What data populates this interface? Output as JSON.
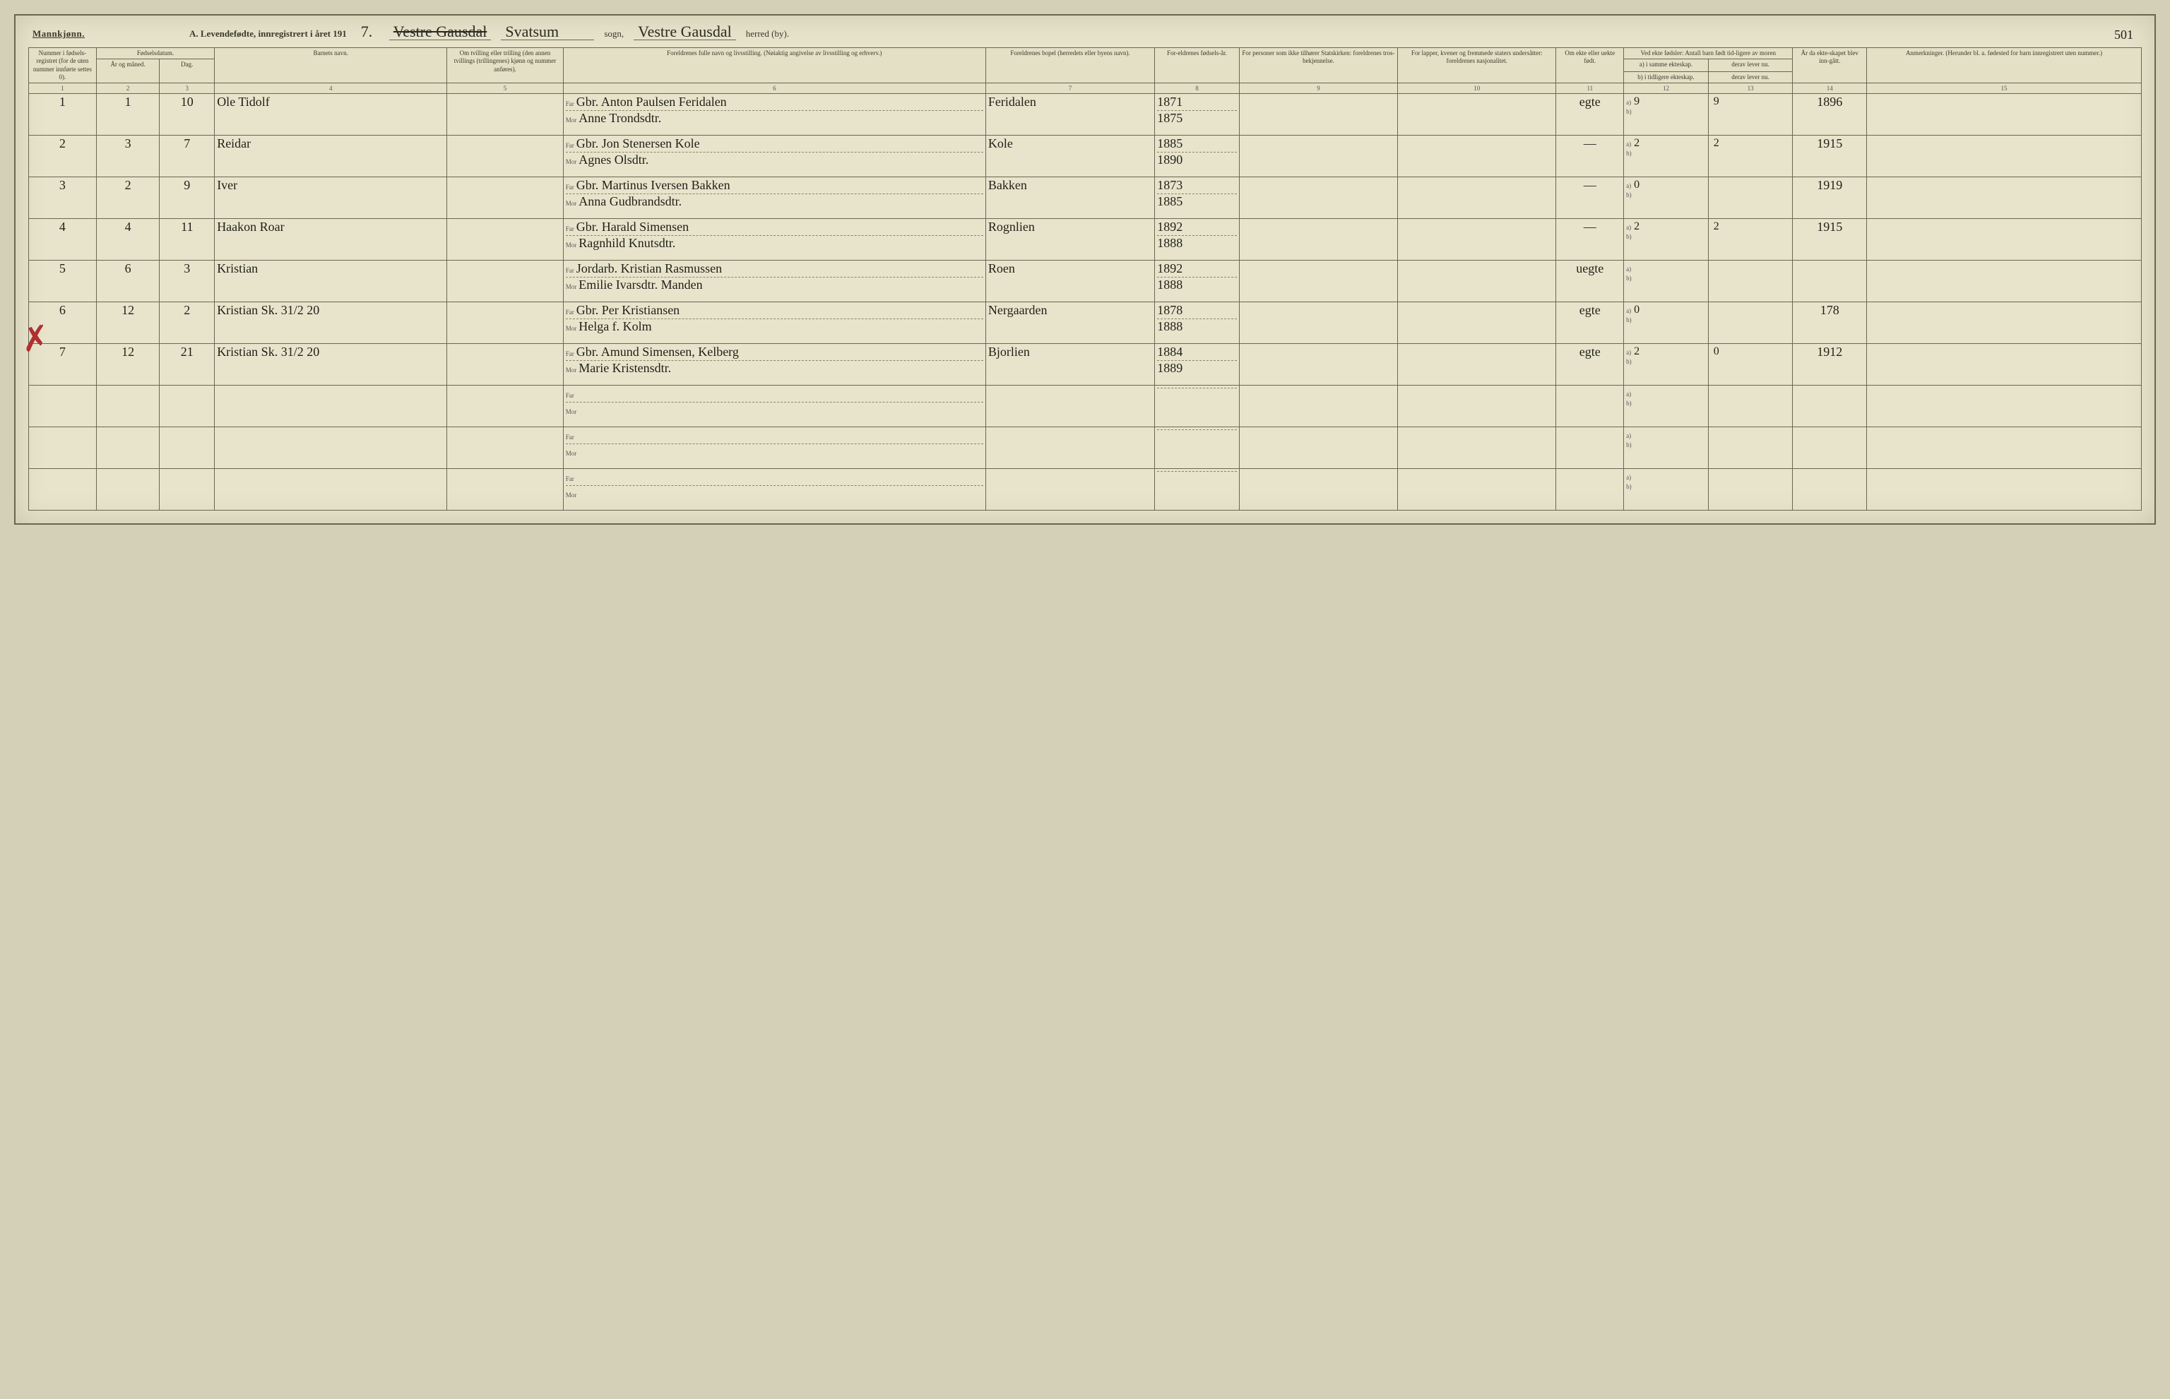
{
  "header": {
    "gender": "Mannkjønn.",
    "title_prefix": "A.  Levendefødte, innregistrert i året 191",
    "year_suffix": "7.",
    "sogn_struck": "Vestre Gausdal",
    "sogn_hand": "Svatsum",
    "sogn_label": "sogn,",
    "herred_hand": "Vestre Gausdal",
    "herred_label": "herred (by).",
    "page_number": "501"
  },
  "columns": {
    "c1": "Nummer i fødsels-registret (for de uten nummer innførte settes 0).",
    "c2a": "Fødselsdatum.",
    "c2": "År og måned.",
    "c3": "Dag.",
    "c4": "Barnets navn.",
    "c5": "Om tvilling eller trilling (den annen tvillings (trillingenes) kjønn og nummer anføres).",
    "c6": "Foreldrenes fulle navn og livsstilling. (Nøiaktig angivelse av livsstilling og erhverv.)",
    "c7": "Foreldrenes bopel (herredets eller byens navn).",
    "c8": "For-eldrenes fødsels-år.",
    "c9": "For personer som ikke tilhører Statskirken: foreldrenes tros-bekjennelse.",
    "c10": "For lapper, kvener og fremmede staters undersåtter: foreldrenes nasjonalitet.",
    "c11": "Om ekte eller uekte født.",
    "c12_top": "Ved ekte fødsler: Antall barn født tid-ligere av moren",
    "c12": "a) i samme ekteskap.",
    "c12b": "b) i tidligere ekteskap.",
    "c13": "derav lever nu.",
    "c13b": "derav lever nu.",
    "c14": "År da ekte-skapet blev inn-gått.",
    "c15": "Anmerkninger. (Herunder bl. a. fødested for barn innregistrert uten nummer.)"
  },
  "rows": [
    {
      "num": "1",
      "month": "1",
      "day": "10",
      "name": "Ole Tidolf",
      "far": "Gbr. Anton Paulsen Feridalen",
      "mor": "Anne Trondsdtr.",
      "bopel": "Feridalen",
      "far_year": "1871",
      "mor_year": "1875",
      "ekte": "egte",
      "a": "9",
      "a_lever": "9",
      "year_m": "1896"
    },
    {
      "num": "2",
      "month": "3",
      "day": "7",
      "name": "Reidar",
      "far": "Gbr. Jon Stenersen Kole",
      "mor": "Agnes Olsdtr.",
      "bopel": "Kole",
      "far_year": "1885",
      "mor_year": "1890",
      "ekte": "—",
      "a": "2",
      "a_lever": "2",
      "year_m": "1915"
    },
    {
      "num": "3",
      "month": "2",
      "day": "9",
      "name": "Iver",
      "far": "Gbr. Martinus Iversen Bakken",
      "mor": "Anna Gudbrandsdtr.",
      "bopel": "Bakken",
      "far_year": "1873",
      "mor_year": "1885",
      "ekte": "—",
      "a": "0",
      "a_lever": "",
      "year_m": "1919"
    },
    {
      "num": "4",
      "month": "4",
      "day": "11",
      "name": "Haakon Roar",
      "far": "Gbr. Harald Simensen",
      "mor": "Ragnhild Knutsdtr.",
      "bopel": "Rognlien",
      "far_year": "1892",
      "mor_year": "1888",
      "ekte": "—",
      "a": "2",
      "a_lever": "2",
      "year_m": "1915"
    },
    {
      "num": "5",
      "month": "6",
      "day": "3",
      "name": "Kristian",
      "far": "Jordarb. Kristian Rasmussen",
      "mor": "Emilie Ivarsdtr. Manden",
      "bopel": "Roen",
      "far_year": "1892",
      "mor_year": "1888",
      "ekte": "uegte",
      "a": "",
      "a_lever": "",
      "year_m": ""
    },
    {
      "num": "6",
      "month": "12",
      "day": "2",
      "name": "Kristian   Sk. 31/2 20",
      "far": "Gbr. Per Kristiansen",
      "mor": "Helga f. Kolm",
      "bopel": "Nergaarden",
      "far_year": "1878",
      "mor_year": "1888",
      "ekte": "egte",
      "a": "0",
      "a_lever": "",
      "year_m": "178"
    },
    {
      "num": "7",
      "month": "12",
      "day": "21",
      "name": "Kristian   Sk. 31/2 20",
      "far": "Gbr. Amund Simensen, Kelberg",
      "mor": "Marie Kristensdtr.",
      "bopel": "Bjorlien",
      "far_year": "1884",
      "mor_year": "1889",
      "ekte": "egte",
      "a": "2",
      "a_lever": "0",
      "year_m": "1912"
    },
    {
      "num": "",
      "month": "",
      "day": "",
      "name": "",
      "far": "",
      "mor": "",
      "bopel": "",
      "far_year": "",
      "mor_year": "",
      "ekte": "",
      "a": "",
      "a_lever": "",
      "year_m": ""
    },
    {
      "num": "",
      "month": "",
      "day": "",
      "name": "",
      "far": "",
      "mor": "",
      "bopel": "",
      "far_year": "",
      "mor_year": "",
      "ekte": "",
      "a": "",
      "a_lever": "",
      "year_m": ""
    },
    {
      "num": "",
      "month": "",
      "day": "",
      "name": "",
      "far": "",
      "mor": "",
      "bopel": "",
      "far_year": "",
      "mor_year": "",
      "ekte": "",
      "a": "",
      "a_lever": "",
      "year_m": ""
    }
  ],
  "labels": {
    "far": "Far",
    "mor": "Mor",
    "a": "a)",
    "b": "b)"
  },
  "colnums": [
    "1",
    "2",
    "3",
    "4",
    "5",
    "6",
    "7",
    "8",
    "9",
    "10",
    "11",
    "12",
    "13",
    "14",
    "15"
  ],
  "red_mark": "✗"
}
